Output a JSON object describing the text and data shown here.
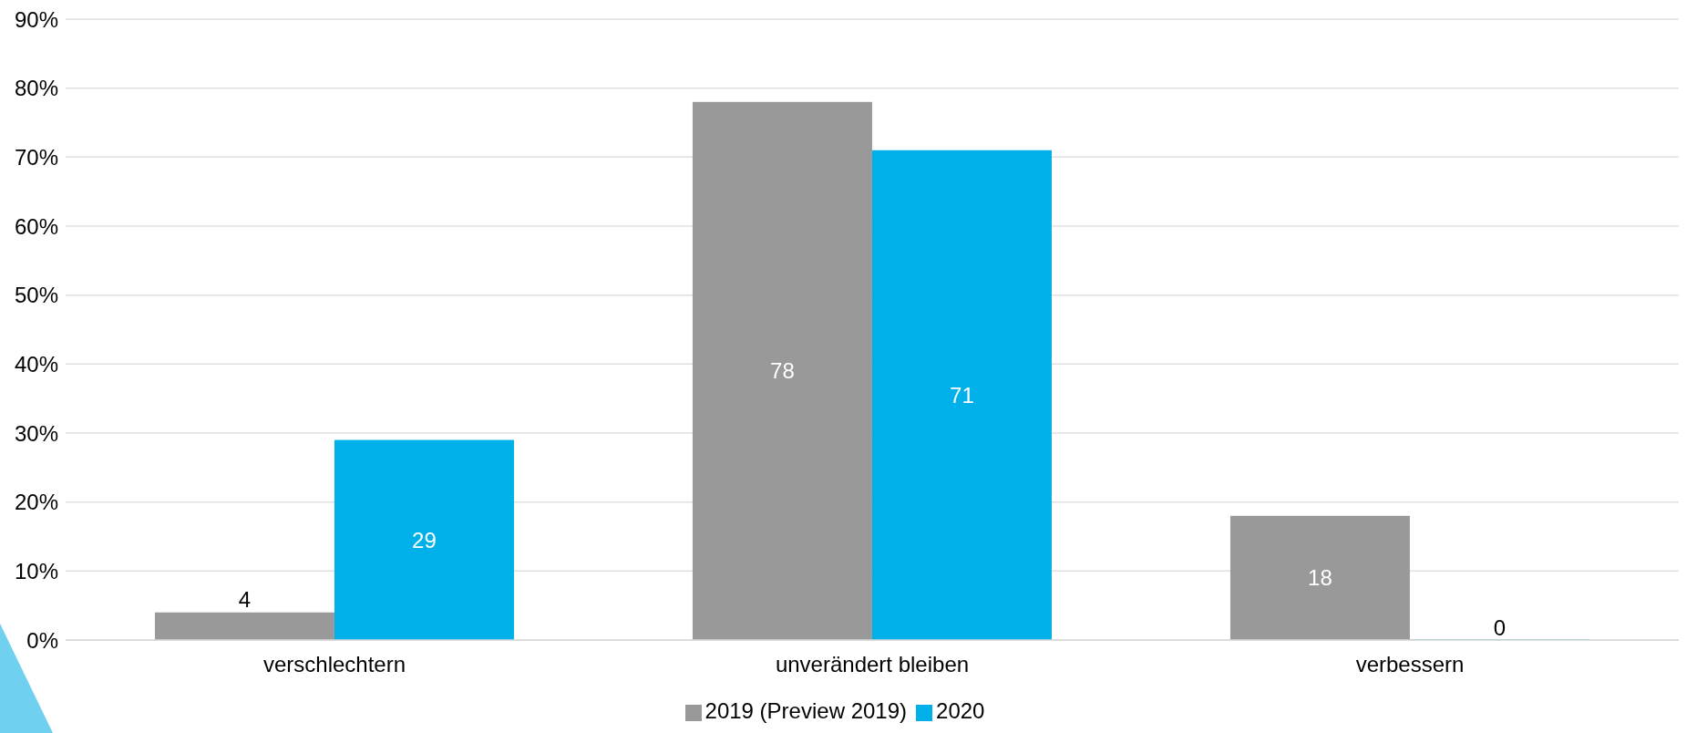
{
  "chart_data": {
    "type": "bar",
    "categories": [
      "verschlechtern",
      "unverändert bleiben",
      "verbessern"
    ],
    "series": [
      {
        "name": "2019 (Preview 2019)",
        "color": "#999999",
        "values": [
          4,
          78,
          18
        ]
      },
      {
        "name": "2020",
        "color": "#00b0e8",
        "values": [
          29,
          71,
          0
        ]
      }
    ],
    "ylim": [
      0,
      90
    ],
    "yticks": [
      {
        "value": 0,
        "label": "0%"
      },
      {
        "value": 10,
        "label": "10%"
      },
      {
        "value": 20,
        "label": "20%"
      },
      {
        "value": 30,
        "label": "30%"
      },
      {
        "value": 40,
        "label": "40%"
      },
      {
        "value": 50,
        "label": "50%"
      },
      {
        "value": 60,
        "label": "60%"
      },
      {
        "value": 70,
        "label": "70%"
      },
      {
        "value": 80,
        "label": "80%"
      },
      {
        "value": 90,
        "label": "90%"
      }
    ],
    "grid": "y",
    "legend": "bottom",
    "data_labels": true
  }
}
